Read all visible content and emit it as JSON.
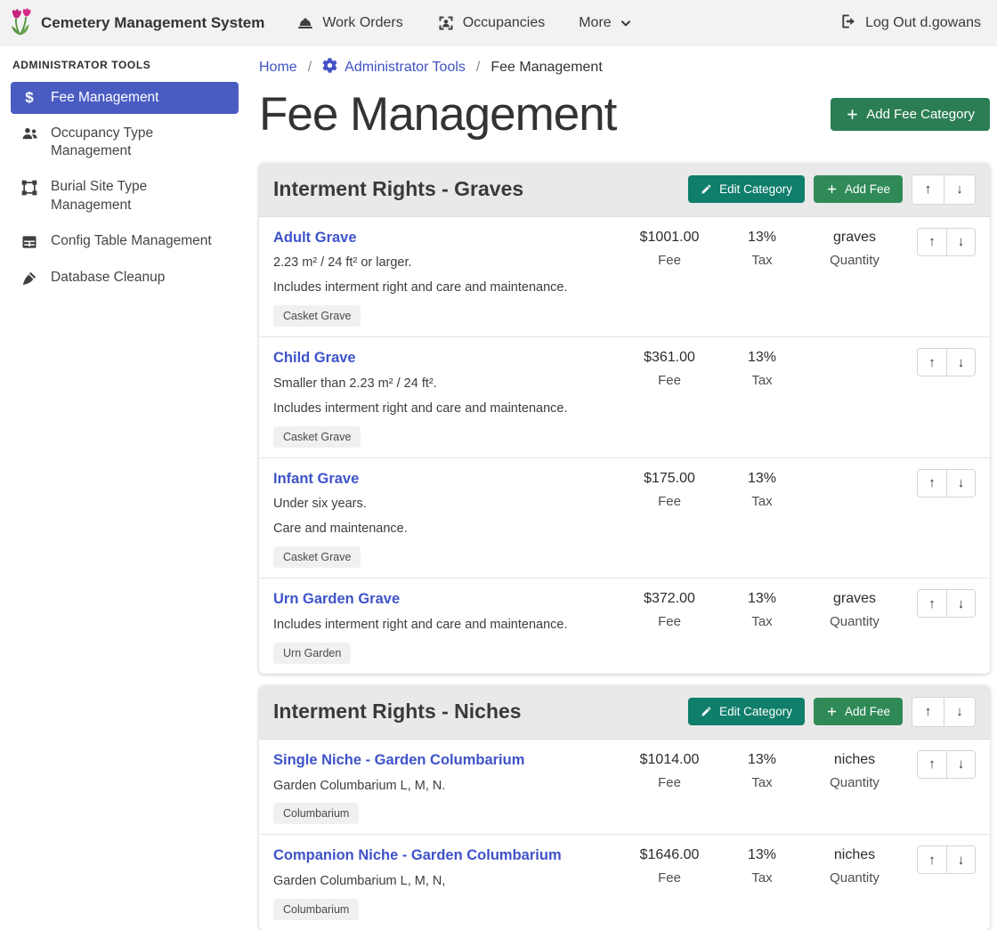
{
  "navbar": {
    "brand": "Cemetery Management System",
    "items": [
      {
        "label": "Work Orders",
        "icon": "hard-hat-icon"
      },
      {
        "label": "Occupancies",
        "icon": "contact-badge-icon"
      },
      {
        "label": "More",
        "icon": "chevron-down-icon"
      }
    ],
    "logout_label": "Log Out d.gowans"
  },
  "sidebar": {
    "heading": "ADMINISTRATOR TOOLS",
    "items": [
      {
        "label": "Fee Management",
        "icon": "dollar-icon",
        "active": true
      },
      {
        "label": "Occupancy Type Management",
        "icon": "users-icon",
        "active": false
      },
      {
        "label": "Burial Site Type Management",
        "icon": "crop-frame-icon",
        "active": false
      },
      {
        "label": "Config Table Management",
        "icon": "table-icon",
        "active": false
      },
      {
        "label": "Database Cleanup",
        "icon": "broom-icon",
        "active": false
      }
    ]
  },
  "breadcrumb": {
    "separator": "/",
    "items": [
      {
        "label": "Home"
      },
      {
        "label": "Administrator Tools",
        "icon": "gear-icon"
      },
      {
        "label": "Fee Management"
      }
    ]
  },
  "page": {
    "title": "Fee Management",
    "add_category_label": "Add Fee Category"
  },
  "labels": {
    "edit_category": "Edit Category",
    "add_fee": "Add Fee",
    "fee": "Fee",
    "tax": "Tax",
    "quantity": "Quantity",
    "move_up": "↑",
    "move_down": "↓"
  },
  "categories": [
    {
      "title": "Interment Rights - Graves",
      "fees": [
        {
          "name": "Adult Grave",
          "descriptions": [
            "2.23 m² / 24 ft² or larger.",
            "Includes interment right and care and maintenance."
          ],
          "tag": "Casket Grave",
          "fee": "$1001.00",
          "tax": "13%",
          "quantity": "graves"
        },
        {
          "name": "Child Grave",
          "descriptions": [
            "Smaller than 2.23 m² / 24 ft².",
            "Includes interment right and care and maintenance."
          ],
          "tag": "Casket Grave",
          "fee": "$361.00",
          "tax": "13%",
          "quantity": ""
        },
        {
          "name": "Infant Grave",
          "descriptions": [
            "Under six years.",
            "Care and maintenance."
          ],
          "tag": "Casket Grave",
          "fee": "$175.00",
          "tax": "13%",
          "quantity": ""
        },
        {
          "name": "Urn Garden Grave",
          "descriptions": [
            "Includes interment right and care and maintenance."
          ],
          "tag": "Urn Garden",
          "fee": "$372.00",
          "tax": "13%",
          "quantity": "graves"
        }
      ]
    },
    {
      "title": "Interment Rights - Niches",
      "fees": [
        {
          "name": "Single Niche - Garden Columbarium",
          "descriptions": [
            "Garden Columbarium L, M, N."
          ],
          "tag": "Columbarium",
          "fee": "$1014.00",
          "tax": "13%",
          "quantity": "niches"
        },
        {
          "name": "Companion Niche - Garden Columbarium",
          "descriptions": [
            "Garden Columbarium L, M, N,"
          ],
          "tag": "Columbarium",
          "fee": "$1646.00",
          "tax": "13%",
          "quantity": "niches"
        }
      ]
    }
  ],
  "colors": {
    "navbar_bg": "#f2f2f2",
    "sidebar_active_bg": "#4a5cc2",
    "link_blue": "#3f51c1",
    "fee_link_blue": "#3e53c9",
    "button_green": "#2f8a58",
    "button_teal": "#0f7e6b",
    "add_category_green": "#2b7e53",
    "category_header_bg": "#e9e9e9"
  }
}
